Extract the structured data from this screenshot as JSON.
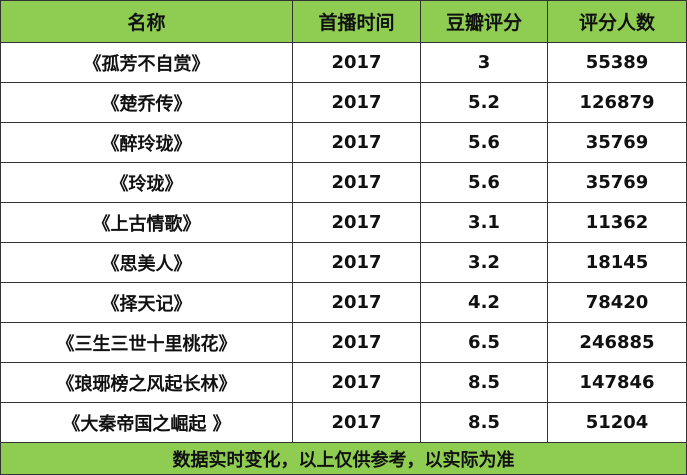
{
  "table": {
    "header": [
      "名称",
      "首播时间",
      "豆瓣评分",
      "评分人数"
    ],
    "rows": [
      [
        "《孤芳不自赏》",
        2017,
        3,
        55389
      ],
      [
        "《楚乔传》",
        2017,
        5.2,
        126879
      ],
      [
        "《醉玲珑》",
        2017,
        5.6,
        35769
      ],
      [
        "《玲珑》",
        2017,
        5.6,
        35769
      ],
      [
        "《上古情歌》",
        2017,
        3.1,
        11362
      ],
      [
        "《思美人》",
        2017,
        3.2,
        18145
      ],
      [
        "《择天记》",
        2017,
        4.2,
        78420
      ],
      [
        "《三生三世十里桃花》",
        2017,
        6.5,
        246885
      ],
      [
        "《琅琊榜之风起长林》",
        2017,
        8.5,
        147846
      ],
      [
        "《大秦帝国之崛起 》",
        2017,
        8.5,
        51204
      ]
    ],
    "footer": "数据实时变化，以上仅供参考，以实际为准"
  }
}
